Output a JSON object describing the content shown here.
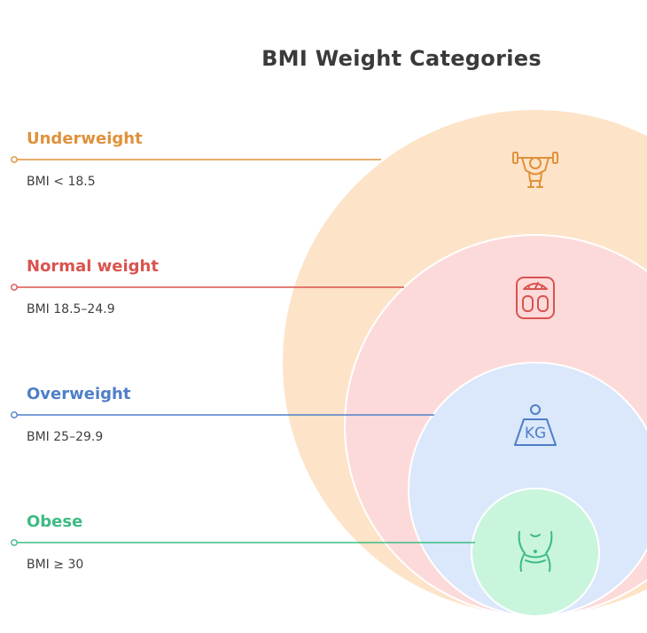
{
  "title": "BMI Weight Categories",
  "categories": [
    {
      "label": "Underweight",
      "range": "BMI < 18.5",
      "color": "#e0913a",
      "fill": "#fde3c8",
      "icon": "weightlifter-icon"
    },
    {
      "label": "Normal weight",
      "range": "BMI 18.5–24.9",
      "color": "#d9534f",
      "fill": "#fddada",
      "icon": "bathroom-scale-icon"
    },
    {
      "label": "Overweight",
      "range": "BMI 25–29.9",
      "color": "#4f7fc8",
      "fill": "#dbe7fb",
      "icon": "kettlebell-kg-icon"
    },
    {
      "label": "Obese",
      "range": "BMI ≥ 30",
      "color": "#3dbb83",
      "fill": "#c9f5dd",
      "icon": "waist-torso-icon"
    }
  ]
}
